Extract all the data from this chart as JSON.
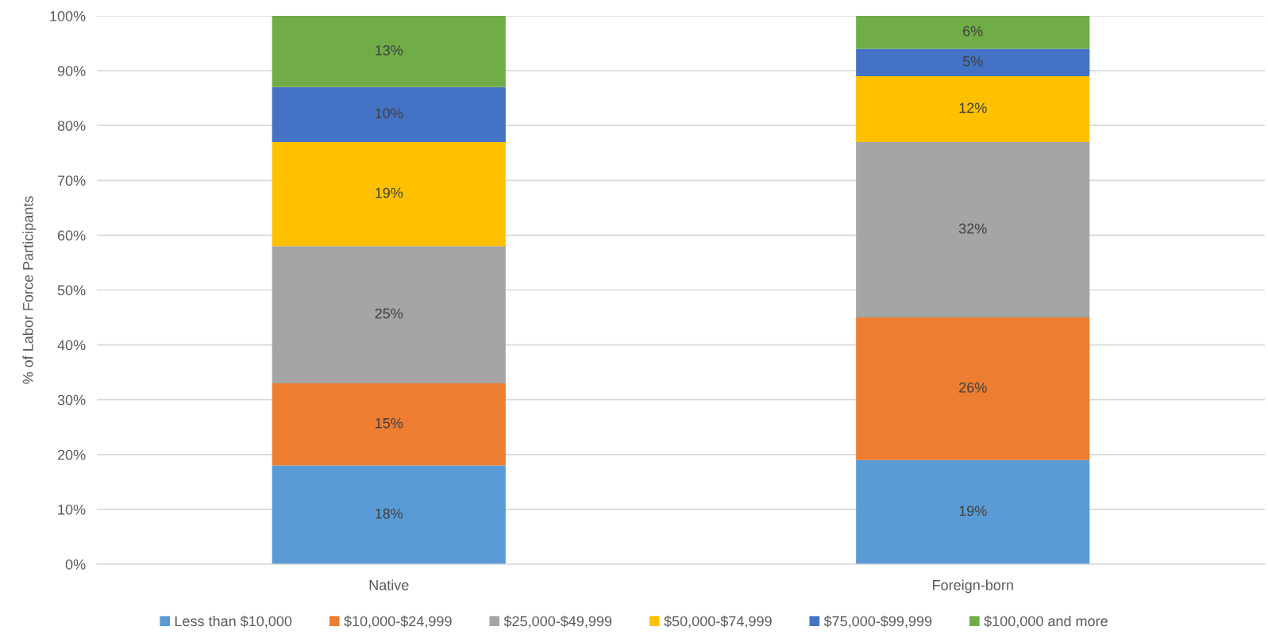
{
  "chart_data": {
    "type": "bar",
    "stacked": true,
    "ylabel": "% of Labor Force Participants",
    "categories": [
      "Native",
      "Foreign-born"
    ],
    "series": [
      {
        "name": "Less than $10,000",
        "color": "#5b9bd5",
        "values": [
          18,
          19
        ],
        "value_labels": [
          "18%",
          "19%"
        ]
      },
      {
        "name": "$10,000-$24,999",
        "color": "#ed7d31",
        "values": [
          15,
          26
        ],
        "value_labels": [
          "15%",
          "26%"
        ]
      },
      {
        "name": "$25,000-$49,999",
        "color": "#a5a5a5",
        "values": [
          25,
          32
        ],
        "value_labels": [
          "25%",
          "32%"
        ]
      },
      {
        "name": "$50,000-$74,999",
        "color": "#ffc000",
        "values": [
          19,
          12
        ],
        "value_labels": [
          "19%",
          "12%"
        ]
      },
      {
        "name": "$75,000-$99,999",
        "color": "#4472c4",
        "values": [
          10,
          5
        ],
        "value_labels": [
          "10%",
          "5%"
        ]
      },
      {
        "name": "$100,000 and more",
        "color": "#70ad47",
        "values": [
          13,
          6
        ],
        "value_labels": [
          "13%",
          "6%"
        ]
      }
    ],
    "ylim": [
      0,
      100
    ],
    "yticks": [
      {
        "value": 0,
        "label": "0%"
      },
      {
        "value": 10,
        "label": "10%"
      },
      {
        "value": 20,
        "label": "20%"
      },
      {
        "value": 30,
        "label": "30%"
      },
      {
        "value": 40,
        "label": "40%"
      },
      {
        "value": 50,
        "label": "50%"
      },
      {
        "value": 60,
        "label": "60%"
      },
      {
        "value": 70,
        "label": "70%"
      },
      {
        "value": 80,
        "label": "80%"
      },
      {
        "value": 90,
        "label": "90%"
      },
      {
        "value": 100,
        "label": "100%"
      }
    ],
    "grid": "y",
    "legend": "bottom"
  }
}
